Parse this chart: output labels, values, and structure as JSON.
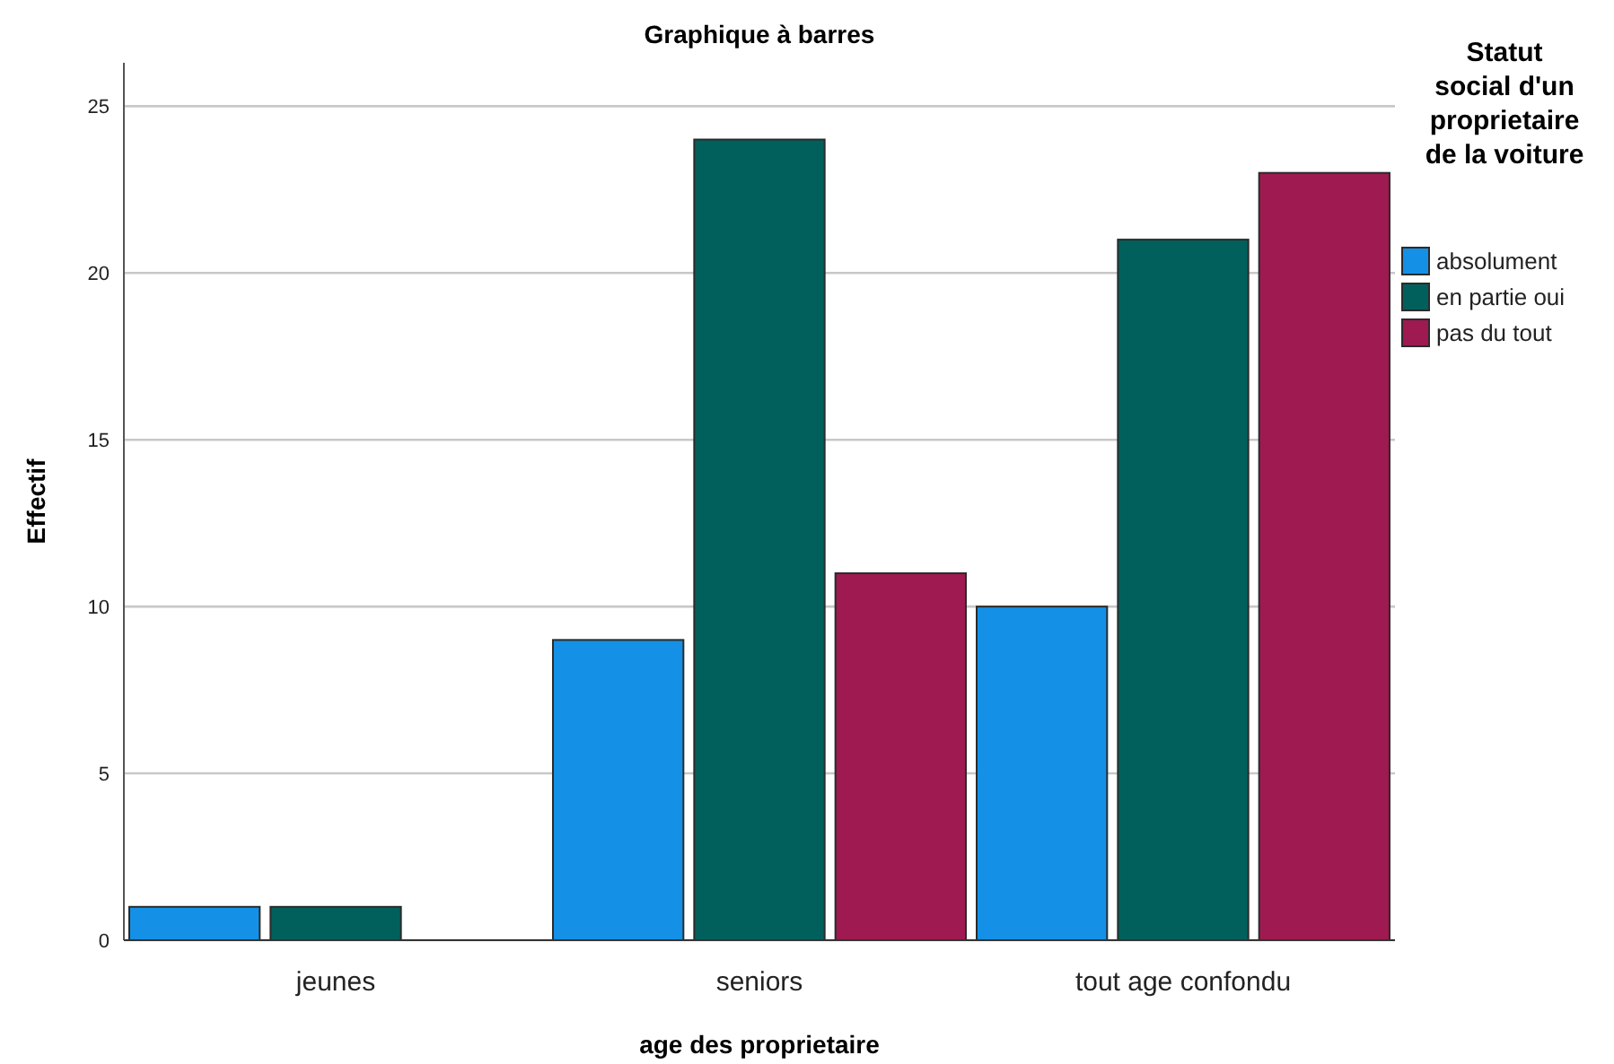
{
  "chart_data": {
    "type": "bar",
    "title": "Graphique à barres",
    "xlabel": "age des proprietaire",
    "ylabel": "Effectif",
    "legend_title": "Statut social d'un proprietaire de la voiture",
    "categories": [
      "jeunes",
      "seniors",
      "tout age confondu"
    ],
    "series": [
      {
        "name": "absolument",
        "color": "#1490e6",
        "values": [
          1,
          9,
          10
        ]
      },
      {
        "name": "en partie oui",
        "color": "#01605c",
        "values": [
          1,
          24,
          21
        ]
      },
      {
        "name": "pas du tout",
        "color": "#9e1a50",
        "values": [
          null,
          11,
          23
        ]
      }
    ],
    "ylim": [
      0,
      26.3
    ],
    "yticks": [
      0,
      5,
      10,
      15,
      20,
      25
    ],
    "grid": "y",
    "legend": "right"
  }
}
